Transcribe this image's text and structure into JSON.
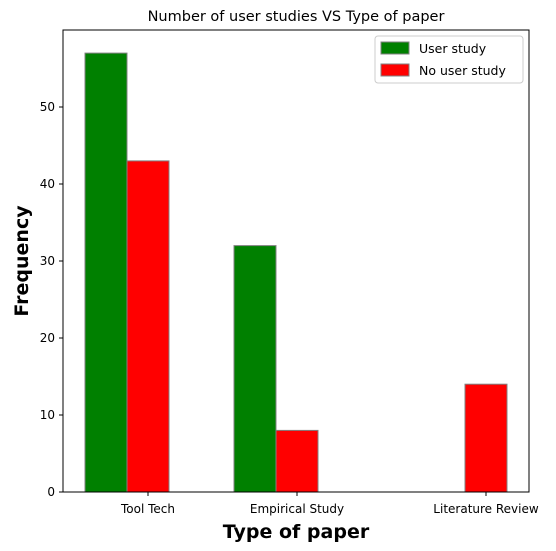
{
  "chart_data": {
    "type": "bar",
    "title": "Number of user studies VS Type of paper",
    "xlabel": "Type of paper",
    "ylabel": "Frequency",
    "categories": [
      "Tool Tech",
      "Empirical Study",
      "Literature Review"
    ],
    "series": [
      {
        "name": "User study",
        "values": [
          57,
          32,
          0
        ],
        "color": "#008000"
      },
      {
        "name": "No user study",
        "values": [
          43,
          8,
          14
        ],
        "color": "#ff0000"
      }
    ],
    "ylim": [
      0,
      60
    ],
    "yticks": [
      "0",
      "10",
      "20",
      "30",
      "40",
      "50"
    ],
    "legend_position": "top-right",
    "grid": false,
    "bar_edge_color": "#808080"
  }
}
